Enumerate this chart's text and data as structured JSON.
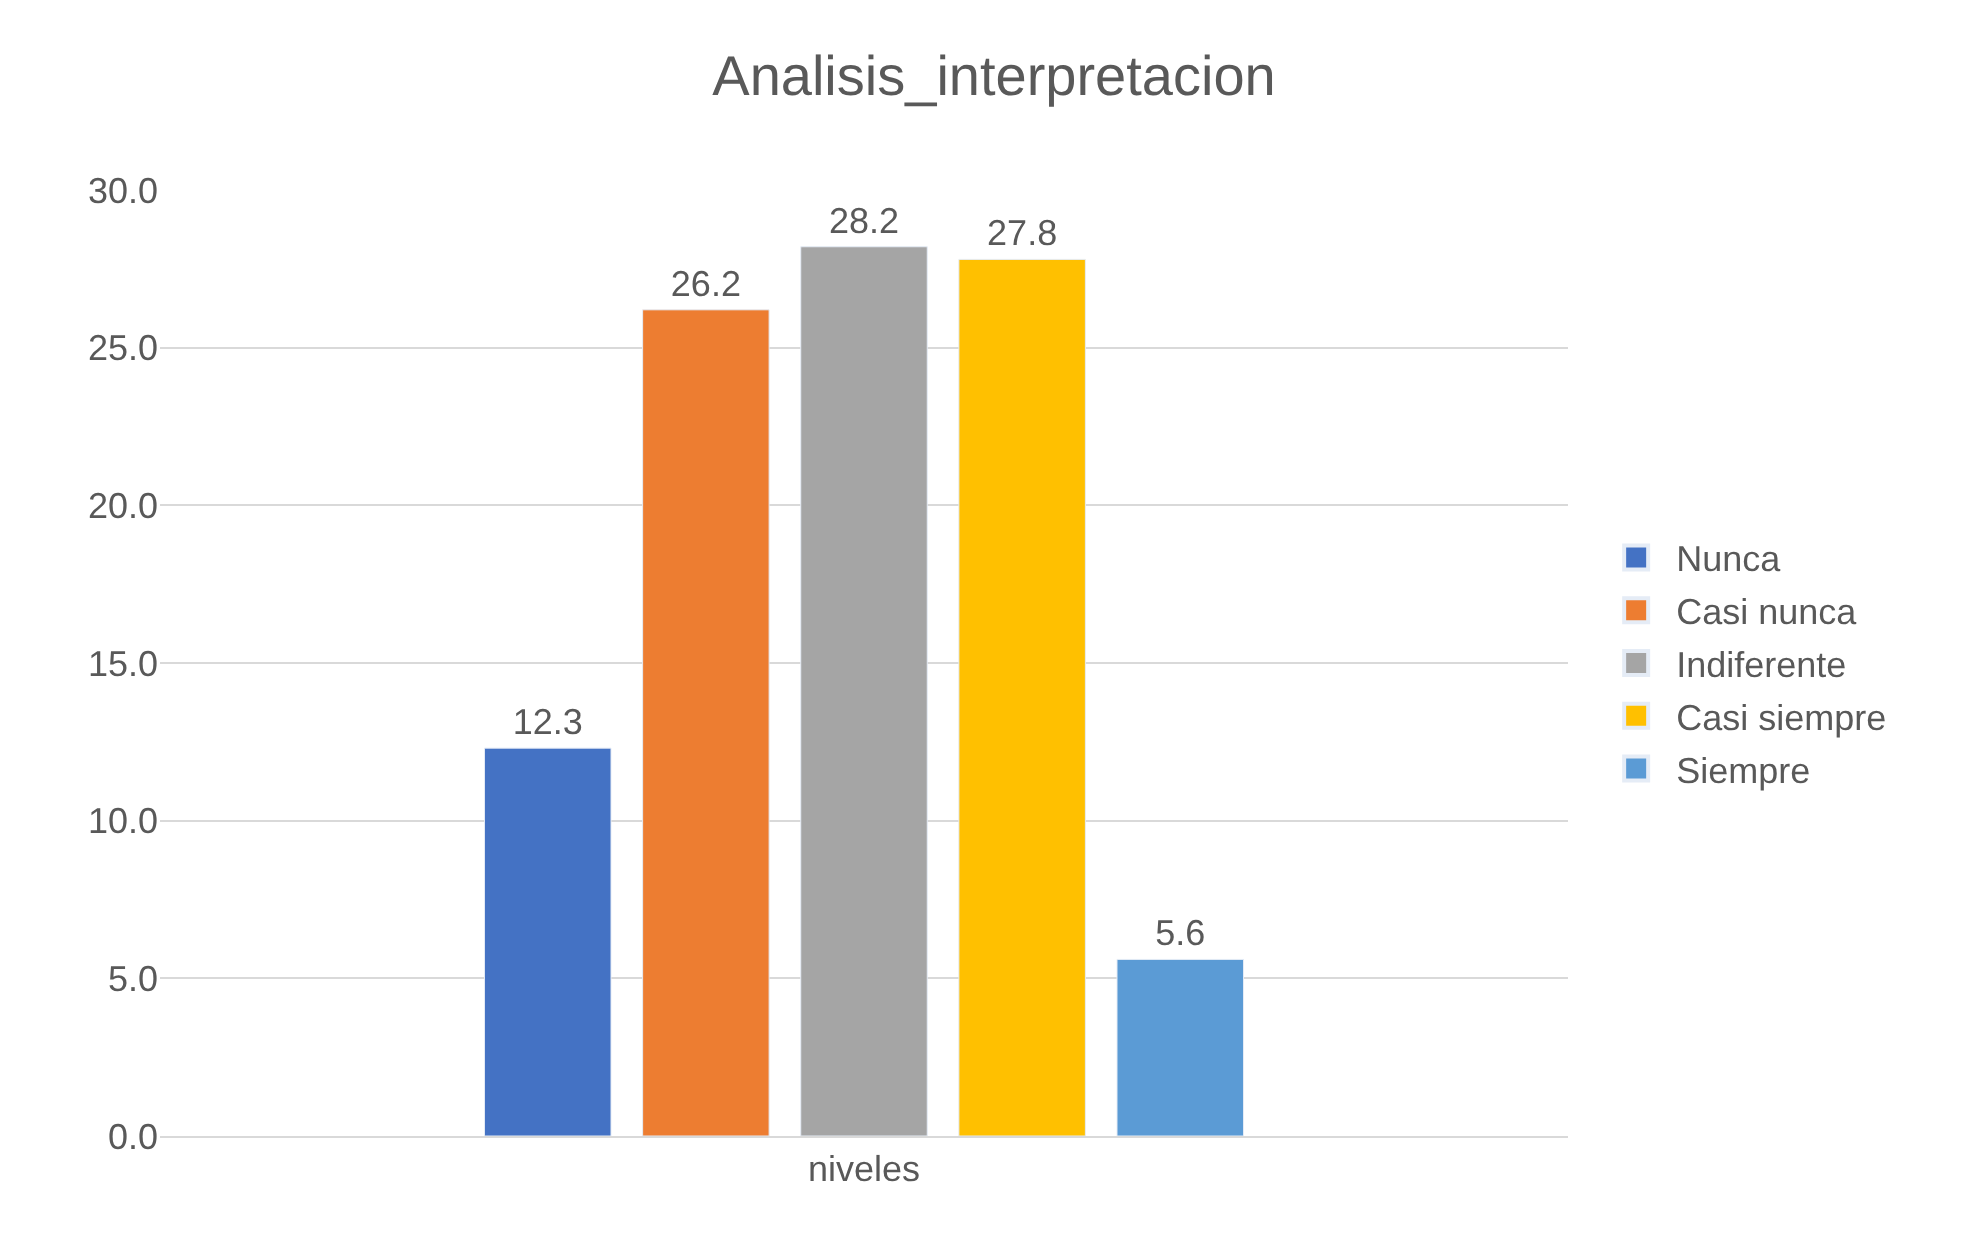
{
  "chart_data": {
    "type": "bar",
    "title": "Analisis_interpretacion",
    "categories": [
      "niveles"
    ],
    "series": [
      {
        "name": "Nunca",
        "color": "#4472c4",
        "values": [
          12.3
        ]
      },
      {
        "name": "Casi nunca",
        "color": "#ed7d31",
        "values": [
          26.2
        ]
      },
      {
        "name": "Indiferente",
        "color": "#a5a5a5",
        "values": [
          28.2
        ]
      },
      {
        "name": "Casi siempre",
        "color": "#ffc000",
        "values": [
          27.8
        ]
      },
      {
        "name": "Siempre",
        "color": "#5b9bd5",
        "values": [
          5.6
        ]
      }
    ],
    "ylim": [
      0,
      30
    ],
    "yticks": [
      {
        "value": 0,
        "label": "0.0"
      },
      {
        "value": 5,
        "label": "5.0"
      },
      {
        "value": 10,
        "label": "10.0"
      },
      {
        "value": 15,
        "label": "15.0"
      },
      {
        "value": 20,
        "label": "20.0"
      },
      {
        "value": 25,
        "label": "25.0"
      },
      {
        "value": 30,
        "label": "30.0"
      }
    ],
    "grid": "y",
    "legend": "right",
    "data_labels": true
  }
}
